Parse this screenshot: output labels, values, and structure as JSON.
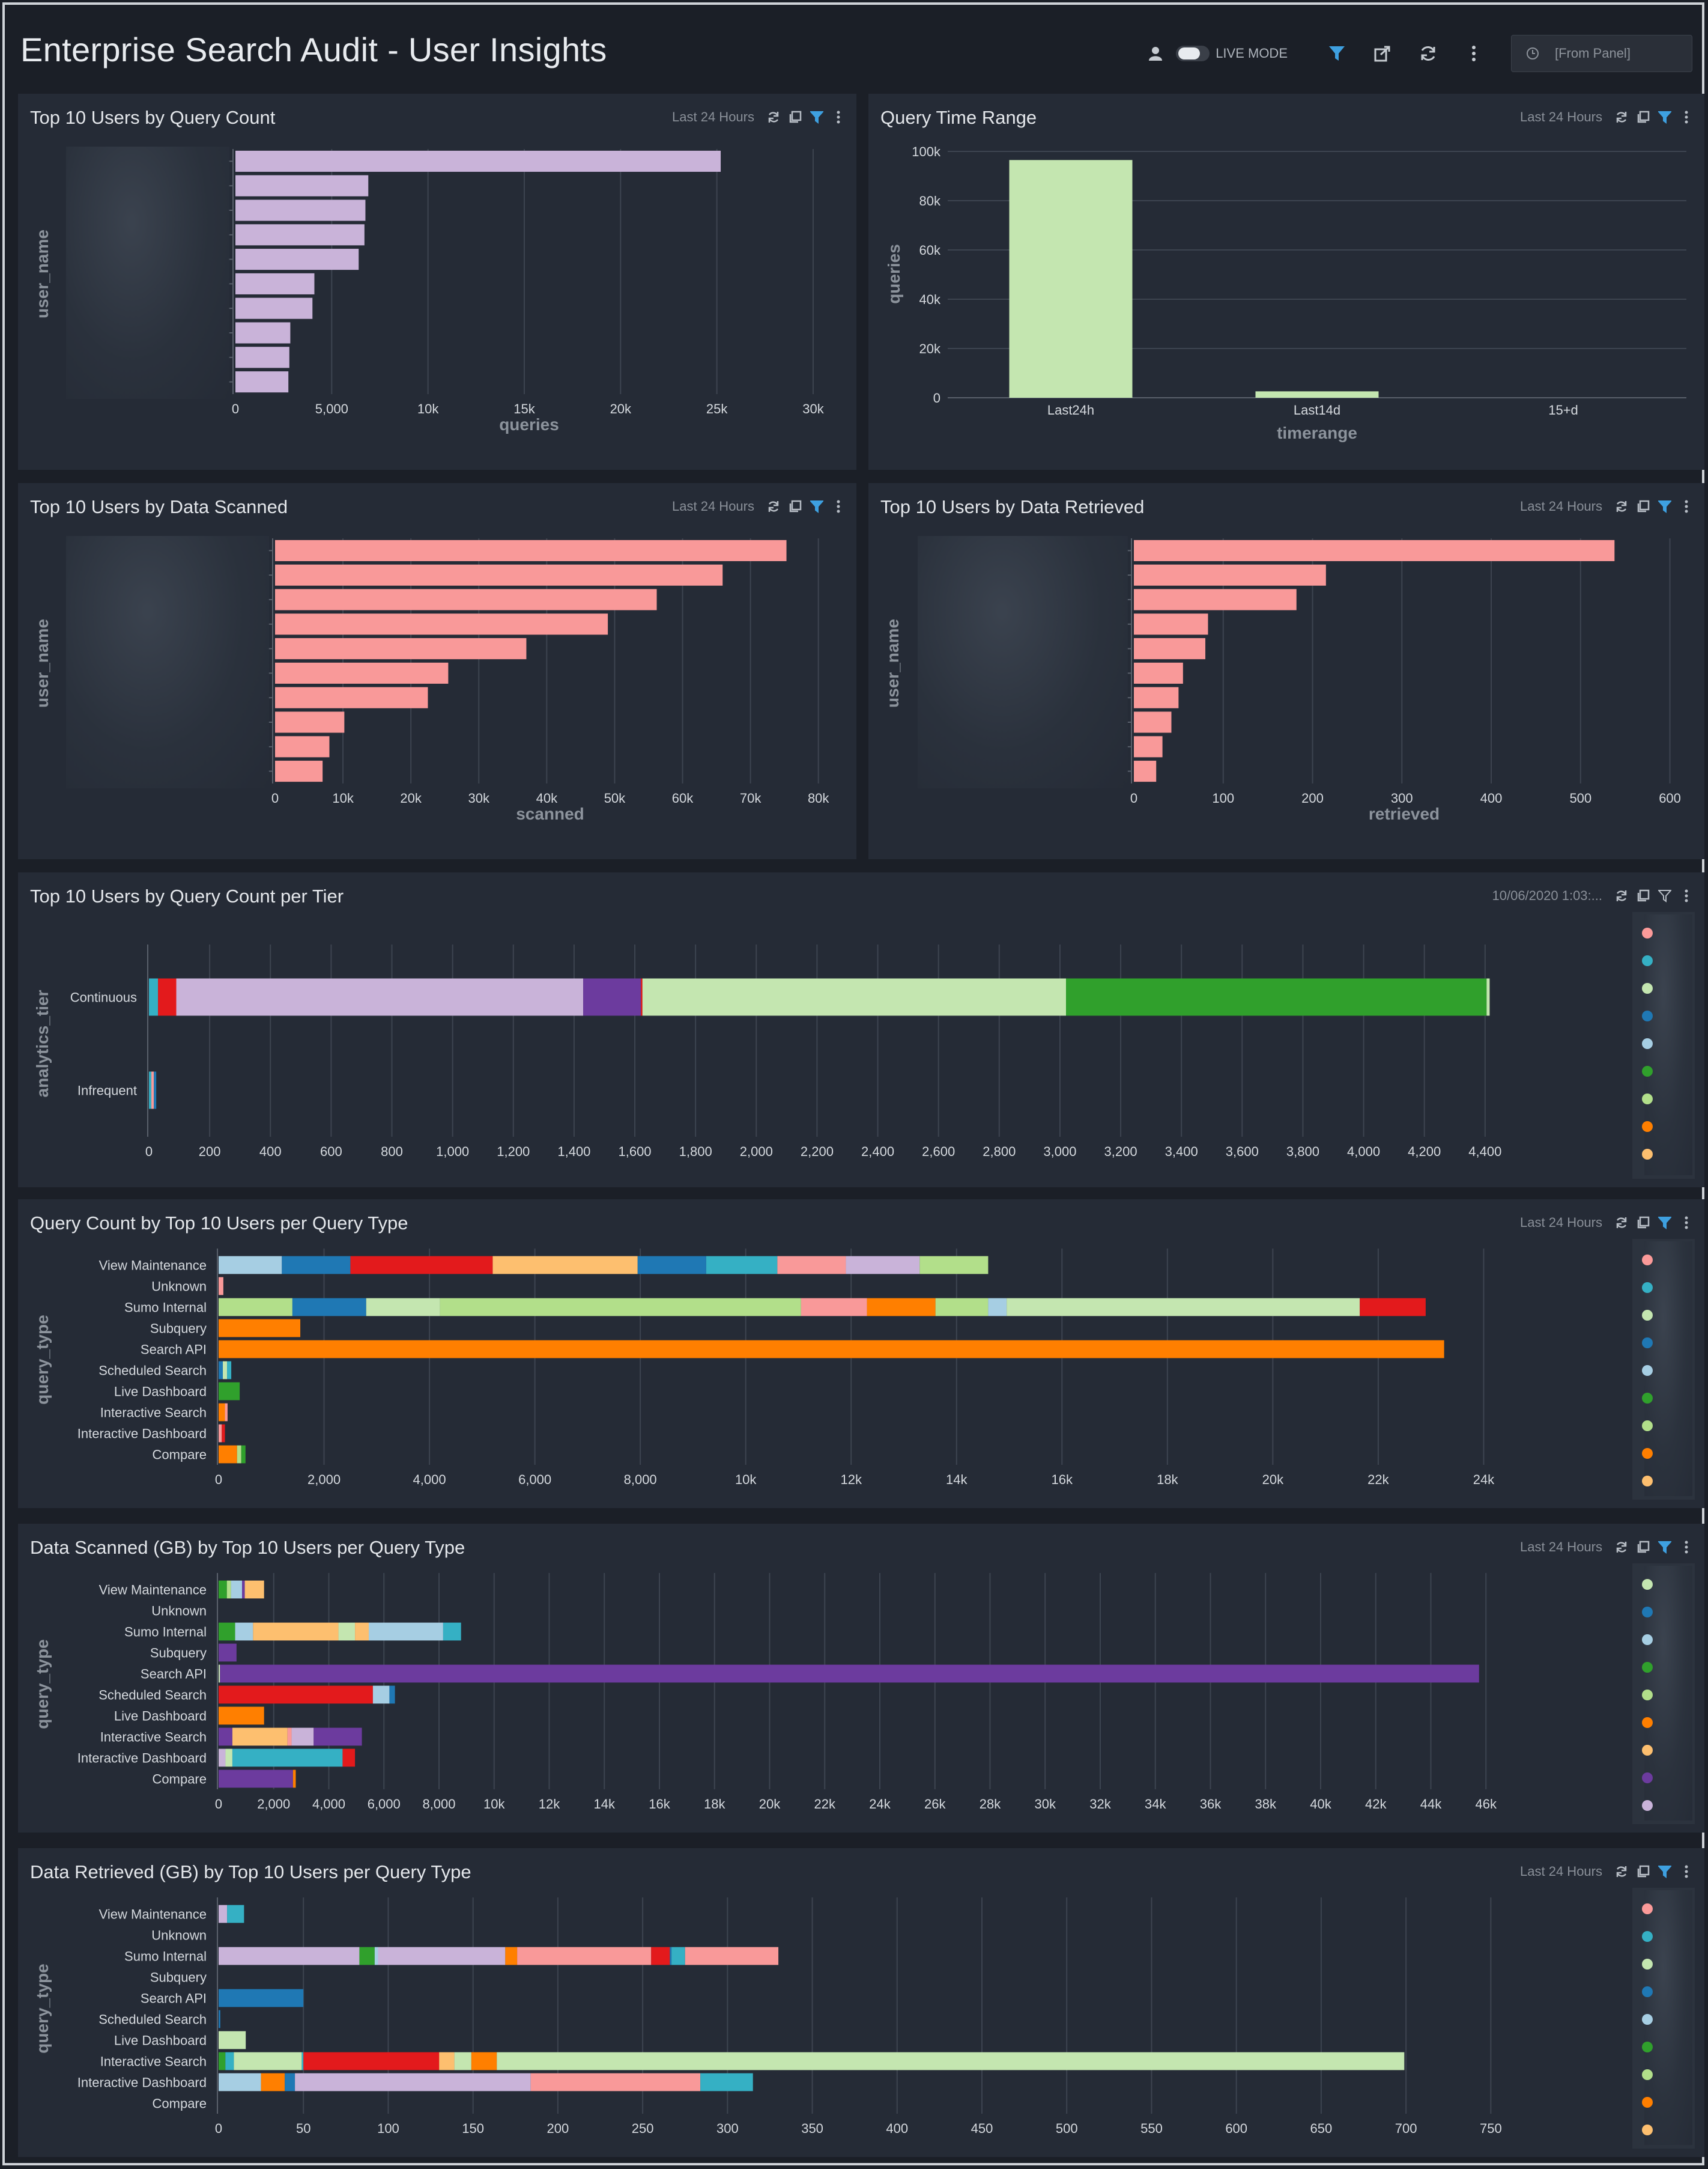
{
  "dashboard": {
    "title": "Enterprise Search Audit - User Insights",
    "live_mode_label": "LIVE MODE",
    "time_range_label": "[From Panel]"
  },
  "colors": {
    "lavender": "#c9b3d9",
    "lightgreen": "#c4e6b0",
    "salmon": "#f99999",
    "teal": "#35b0c4",
    "red": "#e31a1c",
    "purple": "#6c3b9e",
    "green": "#30a02c",
    "palegreen": "#b2df8a",
    "blue": "#1f78b4",
    "lightblue": "#a6cee3",
    "orange": "#ff7f00",
    "peach": "#fdbf6f",
    "pink": "#fb9a99",
    "accent": "#3ea0e0"
  },
  "panels": {
    "query_count": {
      "title": "Top 10 Users by Query Count",
      "range": "Last 24 Hours",
      "chart_data": {
        "type": "bar",
        "orientation": "horizontal",
        "title": "Top 10 Users by Query Count",
        "xlabel": "queries",
        "ylabel": "user_name",
        "xlim": [
          0,
          30500
        ],
        "ticks": [
          "0",
          "5,000",
          "10k",
          "15k",
          "20k",
          "25k",
          "30k"
        ],
        "tick_values": [
          0,
          5000,
          10000,
          15000,
          20000,
          25000,
          30000
        ],
        "values": [
          25200,
          6900,
          6750,
          6700,
          6400,
          4100,
          4000,
          2850,
          2800,
          2750
        ]
      }
    },
    "time_range": {
      "title": "Query Time Range",
      "range": "Last 24 Hours",
      "chart_data": {
        "type": "bar",
        "title": "Query Time Range",
        "xlabel": "timerange",
        "ylabel": "queries",
        "categories": [
          "Last24h",
          "Last14d",
          "15+d"
        ],
        "values": [
          96500,
          2600,
          0
        ],
        "ylim": [
          0,
          100000
        ],
        "ticks": [
          "0",
          "20k",
          "40k",
          "60k",
          "80k",
          "100k"
        ],
        "tick_values": [
          0,
          20000,
          40000,
          60000,
          80000,
          100000
        ]
      }
    },
    "data_scanned": {
      "title": "Top 10 Users by Data Scanned",
      "range": "Last 24 Hours",
      "chart_data": {
        "type": "bar",
        "orientation": "horizontal",
        "title": "Top 10 Users by Data Scanned",
        "xlabel": "scanned",
        "ylabel": "user_name",
        "xlim": [
          0,
          81000
        ],
        "ticks": [
          "0",
          "10k",
          "20k",
          "30k",
          "40k",
          "50k",
          "60k",
          "70k",
          "80k"
        ],
        "tick_values": [
          0,
          10000,
          20000,
          30000,
          40000,
          50000,
          60000,
          70000,
          80000
        ],
        "values": [
          75300,
          65900,
          56200,
          49000,
          37000,
          25500,
          22500,
          10200,
          8000,
          7000
        ]
      }
    },
    "data_retrieved": {
      "title": "Top 10 Users by Data Retrieved",
      "range": "Last 24 Hours",
      "chart_data": {
        "type": "bar",
        "orientation": "horizontal",
        "title": "Top 10 Users by Data Retrieved",
        "xlabel": "retrieved",
        "ylabel": "user_name",
        "xlim": [
          0,
          605
        ],
        "ticks": [
          "0",
          "100",
          "200",
          "300",
          "400",
          "500",
          "600"
        ],
        "tick_values": [
          0,
          100,
          200,
          300,
          400,
          500,
          600
        ],
        "values": [
          538,
          215,
          182,
          83,
          80,
          55,
          50,
          42,
          32,
          25
        ]
      }
    },
    "query_count_tier": {
      "title": "Top 10 Users by Query Count per Tier",
      "range": "10/06/2020 1:03:...",
      "chart_data": {
        "type": "bar",
        "orientation": "horizontal",
        "stacked": true,
        "title": "Top 10 Users by Query Count per Tier",
        "ylabel": "analytics_tier",
        "categories": [
          "Continuous",
          "Infrequent"
        ],
        "xlim": [
          0,
          4430
        ],
        "ticks": [
          "0",
          "200",
          "400",
          "600",
          "800",
          "1,000",
          "1,200",
          "1,400",
          "1,600",
          "1,800",
          "2,000",
          "2,200",
          "2,400",
          "2,600",
          "2,800",
          "3,000",
          "3,200",
          "3,400",
          "3,600",
          "3,800",
          "4,000",
          "4,200",
          "4,400"
        ],
        "tick_values": [
          0,
          200,
          400,
          600,
          800,
          1000,
          1200,
          1400,
          1600,
          1800,
          2000,
          2200,
          2400,
          2600,
          2800,
          3000,
          3200,
          3400,
          3600,
          3800,
          4000,
          4200,
          4400
        ],
        "rows": [
          [
            [
              "teal",
              30
            ],
            [
              "red",
              60
            ],
            [
              "lavender",
              1340
            ],
            [
              "purple",
              190
            ],
            [
              "red",
              5
            ],
            [
              "lightgreen",
              1395
            ],
            [
              "green",
              1385
            ],
            [
              "lightgreen",
              10
            ]
          ],
          [
            [
              "teal",
              8
            ],
            [
              "salmon",
              8
            ],
            [
              "blue",
              8
            ]
          ]
        ],
        "legend_colors": [
          "pink",
          "teal",
          "lightgreen",
          "blue",
          "lightblue",
          "green",
          "palegreen",
          "orange",
          "peach"
        ]
      }
    },
    "query_type_count": {
      "title": "Query Count by Top 10 Users per Query Type",
      "range": "Last 24 Hours",
      "chart_data": {
        "type": "bar",
        "orientation": "horizontal",
        "stacked": true,
        "title": "Query Count by Top 10 Users per Query Type",
        "ylabel": "query_type",
        "categories": [
          "View Maintenance",
          "Unknown",
          "Sumo Internal",
          "Subquery",
          "Search API",
          "Scheduled Search",
          "Live Dashboard",
          "Interactive Search",
          "Interactive Dashboard",
          "Compare"
        ],
        "xlim": [
          0,
          24200
        ],
        "ticks": [
          "0",
          "2,000",
          "4,000",
          "6,000",
          "8,000",
          "10k",
          "12k",
          "14k",
          "16k",
          "18k",
          "20k",
          "22k",
          "24k"
        ],
        "tick_values": [
          0,
          2000,
          4000,
          6000,
          8000,
          10000,
          12000,
          14000,
          16000,
          18000,
          20000,
          22000,
          24000
        ],
        "rows": [
          [
            [
              "lightblue",
              1200
            ],
            [
              "blue",
              1300
            ],
            [
              "red",
              2700
            ],
            [
              "peach",
              2750
            ],
            [
              "blue",
              1300
            ],
            [
              "teal",
              1350
            ],
            [
              "salmon",
              1300
            ],
            [
              "lavender",
              1400
            ],
            [
              "palegreen",
              1300
            ]
          ],
          [
            [
              "salmon",
              90
            ]
          ],
          [
            [
              "palegreen",
              1400
            ],
            [
              "blue",
              1400
            ],
            [
              "lightgreen",
              1400
            ],
            [
              "palegreen",
              6850
            ],
            [
              "salmon",
              1250
            ],
            [
              "orange",
              1300
            ],
            [
              "palegreen",
              1000
            ],
            [
              "lightblue",
              350
            ],
            [
              "lightgreen",
              6700
            ],
            [
              "red",
              1250
            ]
          ],
          [
            [
              "orange",
              1550
            ]
          ],
          [
            [
              "orange",
              23250
            ]
          ],
          [
            [
              "blue",
              80
            ],
            [
              "lightgreen",
              80
            ],
            [
              "teal",
              80
            ]
          ],
          [
            [
              "green",
              400
            ]
          ],
          [
            [
              "orange",
              120
            ],
            [
              "salmon",
              50
            ]
          ],
          [
            [
              "salmon",
              60
            ],
            [
              "red",
              60
            ]
          ],
          [
            [
              "orange",
              350
            ],
            [
              "palegreen",
              80
            ],
            [
              "green",
              80
            ]
          ]
        ],
        "legend_colors": [
          "pink",
          "teal",
          "lightgreen",
          "blue",
          "lightblue",
          "green",
          "palegreen",
          "orange",
          "peach"
        ]
      }
    },
    "query_type_scanned": {
      "title": "Data Scanned (GB) by Top 10 Users per Query Type",
      "range": "Last 24 Hours",
      "chart_data": {
        "type": "bar",
        "orientation": "horizontal",
        "stacked": true,
        "title": "Data Scanned (GB) by Top 10 Users per Query Type",
        "ylabel": "query_type",
        "categories": [
          "View Maintenance",
          "Unknown",
          "Sumo Internal",
          "Subquery",
          "Search API",
          "Scheduled Search",
          "Live Dashboard",
          "Interactive Search",
          "Interactive Dashboard",
          "Compare"
        ],
        "xlim": [
          0,
          46300
        ],
        "ticks": [
          "0",
          "2,000",
          "4,000",
          "6,000",
          "8,000",
          "10k",
          "12k",
          "14k",
          "16k",
          "18k",
          "20k",
          "22k",
          "24k",
          "26k",
          "28k",
          "30k",
          "32k",
          "34k",
          "36k",
          "38k",
          "40k",
          "42k",
          "44k",
          "46k"
        ],
        "tick_values": [
          0,
          2000,
          4000,
          6000,
          8000,
          10000,
          12000,
          14000,
          16000,
          18000,
          20000,
          22000,
          24000,
          26000,
          28000,
          30000,
          32000,
          34000,
          36000,
          38000,
          40000,
          42000,
          44000,
          46000
        ],
        "rows": [
          [
            [
              "green",
              300
            ],
            [
              "palegreen",
              150
            ],
            [
              "lightblue",
              400
            ],
            [
              "purple",
              100
            ],
            [
              "peach",
              700
            ]
          ],
          [],
          [
            [
              "green",
              600
            ],
            [
              "lightblue",
              650
            ],
            [
              "peach",
              3100
            ],
            [
              "lightgreen",
              600
            ],
            [
              "peach",
              500
            ],
            [
              "lightblue",
              2700
            ],
            [
              "teal",
              650
            ]
          ],
          [
            [
              "purple",
              650
            ]
          ],
          [
            [
              "lightgreen",
              50
            ],
            [
              "purple",
              45700
            ]
          ],
          [
            [
              "red",
              5600
            ],
            [
              "lightblue",
              600
            ],
            [
              "blue",
              200
            ]
          ],
          [
            [
              "orange",
              1650
            ]
          ],
          [
            [
              "purple",
              500
            ],
            [
              "peach",
              2000
            ],
            [
              "salmon",
              150
            ],
            [
              "lavender",
              800
            ],
            [
              "purple",
              1750
            ]
          ],
          [
            [
              "lavender",
              250
            ],
            [
              "lightgreen",
              250
            ],
            [
              "teal",
              4000
            ],
            [
              "red",
              450
            ]
          ],
          [
            [
              "purple",
              2700
            ],
            [
              "orange",
              100
            ]
          ]
        ],
        "legend_colors": [
          "lightgreen",
          "blue",
          "lightblue",
          "green",
          "palegreen",
          "orange",
          "peach",
          "purple",
          "lavender"
        ]
      }
    },
    "query_type_retrieved": {
      "title": "Data Retrieved (GB) by Top 10 Users per Query Type",
      "range": "Last 24 Hours",
      "chart_data": {
        "type": "bar",
        "orientation": "horizontal",
        "stacked": true,
        "title": "Data Retrieved (GB) by Top 10 Users per Query Type",
        "ylabel": "query_type",
        "categories": [
          "View Maintenance",
          "Unknown",
          "Sumo Internal",
          "Subquery",
          "Search API",
          "Scheduled Search",
          "Live Dashboard",
          "Interactive Search",
          "Interactive Dashboard",
          "Compare"
        ],
        "xlim": [
          0,
          752
        ],
        "ticks": [
          "0",
          "50",
          "100",
          "150",
          "200",
          "250",
          "300",
          "350",
          "400",
          "450",
          "500",
          "550",
          "600",
          "650",
          "700",
          "750"
        ],
        "tick_values": [
          0,
          50,
          100,
          150,
          200,
          250,
          300,
          350,
          400,
          450,
          500,
          550,
          600,
          650,
          700,
          750
        ],
        "rows": [
          [
            [
              "lavender",
              5
            ],
            [
              "teal",
              10
            ]
          ],
          [],
          [
            [
              "lavender",
              83
            ],
            [
              "green",
              9
            ],
            [
              "lightblue",
              2
            ],
            [
              "lavender",
              75
            ],
            [
              "orange",
              7
            ],
            [
              "salmon",
              79
            ],
            [
              "red",
              11
            ],
            [
              "blue",
              1
            ],
            [
              "teal",
              8
            ],
            [
              "salmon",
              55
            ]
          ],
          [],
          [
            [
              "blue",
              50
            ]
          ],
          [
            [
              "blue",
              1
            ]
          ],
          [
            [
              "lightgreen",
              16
            ]
          ],
          [
            [
              "green",
              4
            ],
            [
              "teal",
              5
            ],
            [
              "lightgreen",
              40
            ],
            [
              "teal",
              1
            ],
            [
              "red",
              80
            ],
            [
              "peach",
              9
            ],
            [
              "lightgreen",
              10
            ],
            [
              "orange",
              15
            ],
            [
              "lightgreen",
              535
            ]
          ],
          [
            [
              "lightblue",
              25
            ],
            [
              "orange",
              14
            ],
            [
              "blue",
              6
            ],
            [
              "lavender",
              139
            ],
            [
              "salmon",
              100
            ],
            [
              "teal",
              31
            ]
          ],
          []
        ],
        "legend_colors": [
          "pink",
          "teal",
          "lightgreen",
          "blue",
          "lightblue",
          "green",
          "palegreen",
          "orange",
          "peach"
        ]
      }
    }
  }
}
